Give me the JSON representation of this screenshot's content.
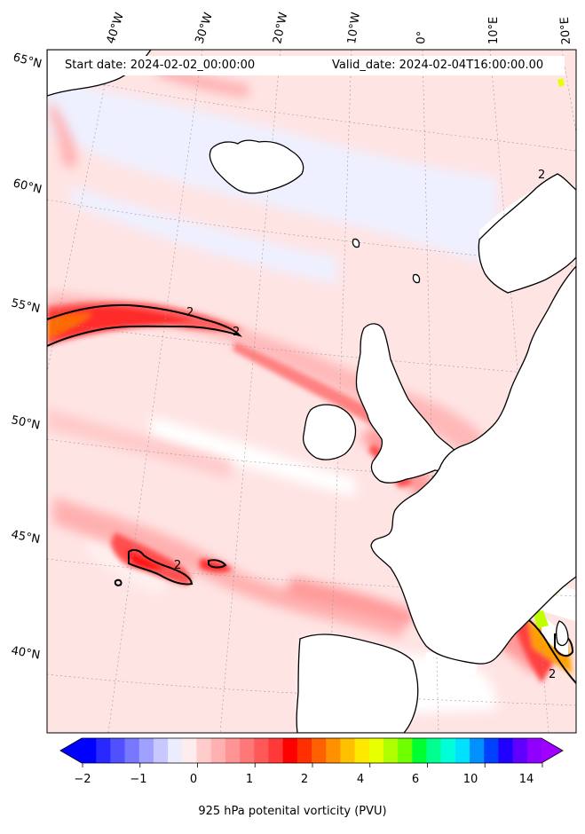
{
  "header": {
    "start_date": "Start date: 2024-02-02_00:00:00",
    "valid_date": "Valid_date: 2024-02-04T16:00:00.00"
  },
  "longitude_labels": [
    "40°W",
    "30°W",
    "20°W",
    "10°W",
    "0°",
    "10°E",
    "20°E"
  ],
  "latitude_labels": [
    "65°N",
    "60°N",
    "55°N",
    "50°N",
    "45°N",
    "40°N"
  ],
  "contour_label": "2",
  "colorbar": {
    "label": "925 hPa potenital vorticity (PVU)",
    "ticks": [
      "−2",
      "−1",
      "0",
      "1",
      "2",
      "4",
      "6",
      "10",
      "14"
    ],
    "colors": [
      "#0000ff",
      "#2828ff",
      "#5050ff",
      "#7878ff",
      "#a0a0ff",
      "#c8c8ff",
      "#ececff",
      "#ffecec",
      "#ffcccc",
      "#ffb0b0",
      "#ff9494",
      "#ff7878",
      "#ff5858",
      "#ff3838",
      "#ff0000",
      "#ff3000",
      "#ff6000",
      "#ff9000",
      "#ffc000",
      "#ffe800",
      "#e8ff00",
      "#b0ff00",
      "#70ff00",
      "#00ff30",
      "#00ff90",
      "#00ffd8",
      "#00e0ff",
      "#0090ff",
      "#0040ff",
      "#2000ff",
      "#6000ff",
      "#9000ff"
    ],
    "under_color": "#0000ff",
    "over_color": "#a000ff"
  },
  "colors": {
    "background_pv": "#ffe4e4",
    "low_pv": "#eef0ff",
    "high_pv": "#ff2020",
    "coastline": "#000000"
  }
}
